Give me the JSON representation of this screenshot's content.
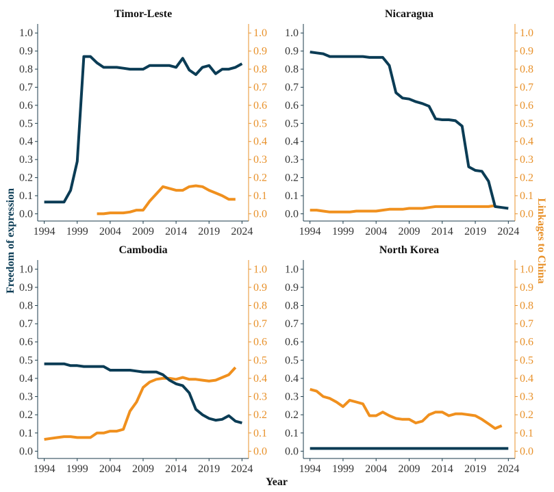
{
  "chart_data": {
    "type": "line",
    "xlabel": "Year",
    "ylabel_left": "Freedom of expression",
    "ylabel_right": "Linkages to China",
    "xlim": [
      1993,
      2025
    ],
    "ylim": [
      -0.04,
      1.05
    ],
    "x_ticks": [
      1994,
      1999,
      2004,
      2009,
      2014,
      2019,
      2024
    ],
    "y_ticks": [
      "0.0",
      "0.1",
      "0.2",
      "0.3",
      "0.4",
      "0.5",
      "0.6",
      "0.7",
      "0.8",
      "0.9",
      "1.0"
    ],
    "colors": {
      "freedom": "#0b3c55",
      "linkages": "#f0901e",
      "axis_right": "#e8912a"
    },
    "panels": [
      {
        "title": "Timor-Leste",
        "freedom": {
          "x": [
            1994,
            1995,
            1996,
            1997,
            1998,
            1999,
            2000,
            2001,
            2002,
            2003,
            2004,
            2005,
            2006,
            2007,
            2008,
            2009,
            2010,
            2011,
            2012,
            2013,
            2014,
            2015,
            2016,
            2017,
            2018,
            2019,
            2020,
            2021,
            2022,
            2023,
            2024
          ],
          "y": [
            0.065,
            0.065,
            0.065,
            0.065,
            0.13,
            0.29,
            0.87,
            0.87,
            0.835,
            0.81,
            0.81,
            0.81,
            0.805,
            0.8,
            0.8,
            0.8,
            0.82,
            0.82,
            0.82,
            0.82,
            0.81,
            0.86,
            0.795,
            0.77,
            0.81,
            0.82,
            0.775,
            0.8,
            0.8,
            0.81,
            0.83
          ]
        },
        "linkages": {
          "x": [
            2002,
            2003,
            2004,
            2005,
            2006,
            2007,
            2008,
            2009,
            2010,
            2011,
            2012,
            2013,
            2014,
            2015,
            2016,
            2017,
            2018,
            2019,
            2020,
            2021,
            2022,
            2023
          ],
          "y": [
            0.0,
            0.0,
            0.005,
            0.005,
            0.005,
            0.01,
            0.02,
            0.02,
            0.07,
            0.11,
            0.15,
            0.14,
            0.13,
            0.13,
            0.15,
            0.155,
            0.15,
            0.13,
            0.115,
            0.1,
            0.08,
            0.08
          ]
        }
      },
      {
        "title": "Nicaragua",
        "freedom": {
          "x": [
            1994,
            1995,
            1996,
            1997,
            1998,
            1999,
            2000,
            2001,
            2002,
            2003,
            2004,
            2005,
            2006,
            2007,
            2008,
            2009,
            2010,
            2011,
            2012,
            2013,
            2014,
            2015,
            2016,
            2017,
            2018,
            2019,
            2020,
            2021,
            2022,
            2023,
            2024
          ],
          "y": [
            0.895,
            0.89,
            0.885,
            0.87,
            0.87,
            0.87,
            0.87,
            0.87,
            0.87,
            0.865,
            0.865,
            0.865,
            0.82,
            0.67,
            0.64,
            0.635,
            0.62,
            0.61,
            0.595,
            0.525,
            0.52,
            0.52,
            0.515,
            0.485,
            0.26,
            0.24,
            0.235,
            0.18,
            0.04,
            0.035,
            0.03
          ]
        },
        "linkages": {
          "x": [
            1994,
            1995,
            1996,
            1997,
            1998,
            1999,
            2000,
            2001,
            2002,
            2003,
            2004,
            2005,
            2006,
            2007,
            2008,
            2009,
            2010,
            2011,
            2012,
            2013,
            2014,
            2015,
            2016,
            2017,
            2018,
            2019,
            2020,
            2021,
            2022
          ],
          "y": [
            0.02,
            0.02,
            0.015,
            0.01,
            0.01,
            0.01,
            0.01,
            0.015,
            0.015,
            0.015,
            0.015,
            0.02,
            0.025,
            0.025,
            0.025,
            0.03,
            0.03,
            0.03,
            0.035,
            0.04,
            0.04,
            0.04,
            0.04,
            0.04,
            0.04,
            0.04,
            0.04,
            0.04,
            0.045
          ]
        }
      },
      {
        "title": "Cambodia",
        "freedom": {
          "x": [
            1994,
            1995,
            1996,
            1997,
            1998,
            1999,
            2000,
            2001,
            2002,
            2003,
            2004,
            2005,
            2006,
            2007,
            2008,
            2009,
            2010,
            2011,
            2012,
            2013,
            2014,
            2015,
            2016,
            2017,
            2018,
            2019,
            2020,
            2021,
            2022,
            2023,
            2024
          ],
          "y": [
            0.48,
            0.48,
            0.48,
            0.48,
            0.47,
            0.47,
            0.465,
            0.465,
            0.465,
            0.465,
            0.445,
            0.445,
            0.445,
            0.445,
            0.44,
            0.435,
            0.435,
            0.435,
            0.42,
            0.39,
            0.37,
            0.36,
            0.32,
            0.23,
            0.2,
            0.18,
            0.17,
            0.175,
            0.195,
            0.165,
            0.155
          ]
        },
        "linkages": {
          "x": [
            1994,
            1995,
            1996,
            1997,
            1998,
            1999,
            2000,
            2001,
            2002,
            2003,
            2004,
            2005,
            2006,
            2007,
            2008,
            2009,
            2010,
            2011,
            2012,
            2013,
            2014,
            2015,
            2016,
            2017,
            2018,
            2019,
            2020,
            2021,
            2022,
            2023
          ],
          "y": [
            0.065,
            0.07,
            0.075,
            0.08,
            0.08,
            0.075,
            0.075,
            0.075,
            0.1,
            0.1,
            0.11,
            0.11,
            0.12,
            0.22,
            0.27,
            0.35,
            0.38,
            0.395,
            0.4,
            0.4,
            0.395,
            0.405,
            0.395,
            0.395,
            0.39,
            0.385,
            0.39,
            0.405,
            0.42,
            0.46
          ]
        }
      },
      {
        "title": "North Korea",
        "freedom": {
          "x": [
            1994,
            2024
          ],
          "y": [
            0.015,
            0.015
          ]
        },
        "linkages": {
          "x": [
            1994,
            1995,
            1996,
            1997,
            1998,
            1999,
            2000,
            2001,
            2002,
            2003,
            2004,
            2005,
            2006,
            2007,
            2008,
            2009,
            2010,
            2011,
            2012,
            2013,
            2014,
            2015,
            2016,
            2017,
            2018,
            2019,
            2020,
            2021,
            2022,
            2023
          ],
          "y": [
            0.34,
            0.33,
            0.3,
            0.29,
            0.27,
            0.245,
            0.28,
            0.27,
            0.26,
            0.195,
            0.195,
            0.215,
            0.195,
            0.18,
            0.175,
            0.175,
            0.155,
            0.165,
            0.2,
            0.215,
            0.215,
            0.195,
            0.205,
            0.205,
            0.2,
            0.195,
            0.175,
            0.15,
            0.125,
            0.14
          ]
        }
      }
    ]
  }
}
